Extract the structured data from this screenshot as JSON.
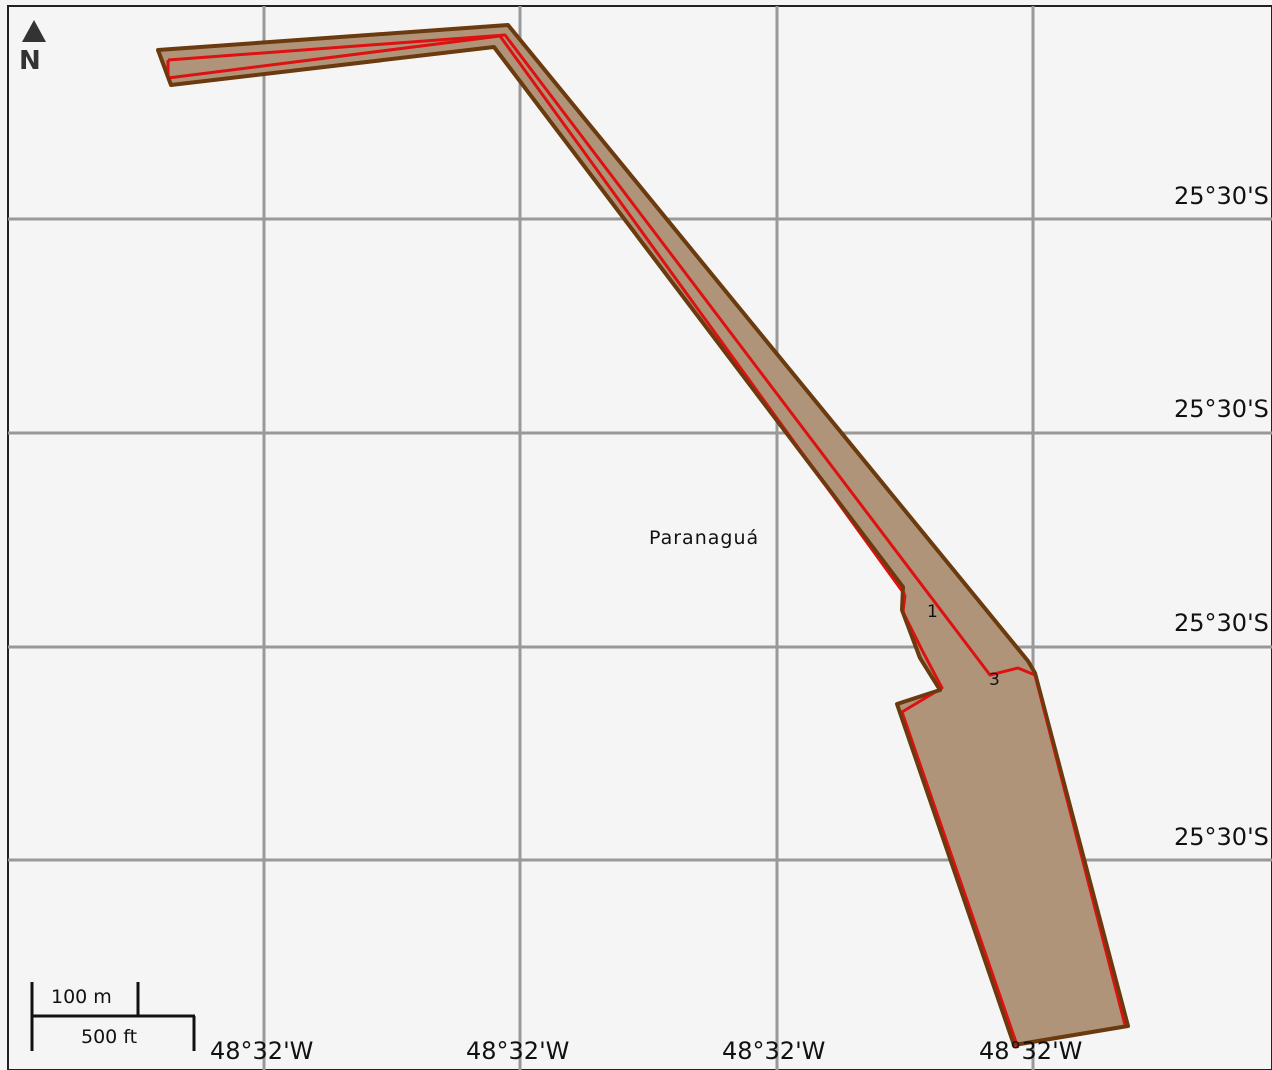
{
  "map": {
    "place_name": "Paranaguá",
    "north_label": "N",
    "markers": [
      "1",
      "3"
    ],
    "latitude_labels": [
      "25°30'S",
      "25°30'S",
      "25°30'S",
      "25°30'S"
    ],
    "longitude_labels": [
      "48°32'W",
      "48°32'W",
      "48°32'W",
      "48°32'W"
    ],
    "scale_bar": {
      "metric_label": "100 m",
      "imperial_label": "500 ft"
    },
    "colors": {
      "background": "#f5f5f5",
      "grid": "#999999",
      "area_fill": "#b09479",
      "area_outline": "#6b3a0e",
      "boundary_line": "#dd1111"
    },
    "icons": [
      "north-arrow-icon"
    ]
  }
}
